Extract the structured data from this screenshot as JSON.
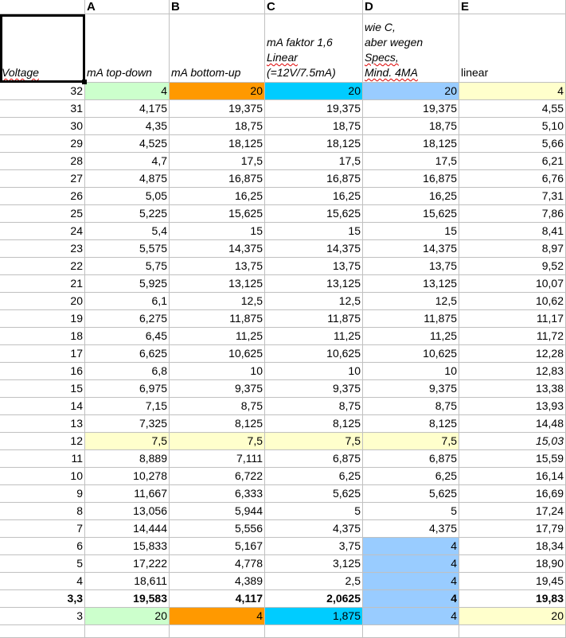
{
  "colors": {
    "green": "#ccffcc",
    "orange": "#ff9900",
    "cyan": "#00ccff",
    "blue": "#99ccff",
    "yellow": "#ffffcc"
  },
  "column_letters": [
    "",
    "A",
    "B",
    "C",
    "D",
    "E"
  ],
  "headers": [
    {
      "lines": [
        "Voltage"
      ]
    },
    {
      "lines": [
        "mA top-down"
      ]
    },
    {
      "lines": [
        "mA bottom-up"
      ]
    },
    {
      "lines": [
        "mA faktor 1,6",
        "Linear",
        "(=12V/7.5mA)"
      ]
    },
    {
      "lines": [
        "wie C,",
        "aber wegen",
        "Specs,",
        "Mind. 4MA"
      ]
    },
    {
      "lines": [
        "linear"
      ]
    }
  ],
  "rows": [
    {
      "v": [
        "32",
        "4",
        "20",
        "20",
        "20",
        "4"
      ],
      "fill": [
        null,
        "green",
        "orange",
        "cyan",
        "blue",
        "yellow"
      ]
    },
    {
      "v": [
        "31",
        "4,175",
        "19,375",
        "19,375",
        "19,375",
        "4,55"
      ]
    },
    {
      "v": [
        "30",
        "4,35",
        "18,75",
        "18,75",
        "18,75",
        "5,10"
      ]
    },
    {
      "v": [
        "29",
        "4,525",
        "18,125",
        "18,125",
        "18,125",
        "5,66"
      ]
    },
    {
      "v": [
        "28",
        "4,7",
        "17,5",
        "17,5",
        "17,5",
        "6,21"
      ]
    },
    {
      "v": [
        "27",
        "4,875",
        "16,875",
        "16,875",
        "16,875",
        "6,76"
      ]
    },
    {
      "v": [
        "26",
        "5,05",
        "16,25",
        "16,25",
        "16,25",
        "7,31"
      ]
    },
    {
      "v": [
        "25",
        "5,225",
        "15,625",
        "15,625",
        "15,625",
        "7,86"
      ]
    },
    {
      "v": [
        "24",
        "5,4",
        "15",
        "15",
        "15",
        "8,41"
      ]
    },
    {
      "v": [
        "23",
        "5,575",
        "14,375",
        "14,375",
        "14,375",
        "8,97"
      ]
    },
    {
      "v": [
        "22",
        "5,75",
        "13,75",
        "13,75",
        "13,75",
        "9,52"
      ]
    },
    {
      "v": [
        "21",
        "5,925",
        "13,125",
        "13,125",
        "13,125",
        "10,07"
      ]
    },
    {
      "v": [
        "20",
        "6,1",
        "12,5",
        "12,5",
        "12,5",
        "10,62"
      ]
    },
    {
      "v": [
        "19",
        "6,275",
        "11,875",
        "11,875",
        "11,875",
        "11,17"
      ]
    },
    {
      "v": [
        "18",
        "6,45",
        "11,25",
        "11,25",
        "11,25",
        "11,72"
      ]
    },
    {
      "v": [
        "17",
        "6,625",
        "10,625",
        "10,625",
        "10,625",
        "12,28"
      ]
    },
    {
      "v": [
        "16",
        "6,8",
        "10",
        "10",
        "10",
        "12,83"
      ]
    },
    {
      "v": [
        "15",
        "6,975",
        "9,375",
        "9,375",
        "9,375",
        "13,38"
      ]
    },
    {
      "v": [
        "14",
        "7,15",
        "8,75",
        "8,75",
        "8,75",
        "13,93"
      ]
    },
    {
      "v": [
        "13",
        "7,325",
        "8,125",
        "8,125",
        "8,125",
        "14,48"
      ]
    },
    {
      "v": [
        "12",
        "7,5",
        "7,5",
        "7,5",
        "7,5",
        "15,03"
      ],
      "fill": [
        null,
        "yellow",
        "yellow",
        "yellow",
        "yellow",
        null
      ],
      "italic_last": true
    },
    {
      "v": [
        "11",
        "8,889",
        "7,111",
        "6,875",
        "6,875",
        "15,59"
      ]
    },
    {
      "v": [
        "10",
        "10,278",
        "6,722",
        "6,25",
        "6,25",
        "16,14"
      ]
    },
    {
      "v": [
        "9",
        "11,667",
        "6,333",
        "5,625",
        "5,625",
        "16,69"
      ]
    },
    {
      "v": [
        "8",
        "13,056",
        "5,944",
        "5",
        "5",
        "17,24"
      ]
    },
    {
      "v": [
        "7",
        "14,444",
        "5,556",
        "4,375",
        "4,375",
        "17,79"
      ]
    },
    {
      "v": [
        "6",
        "15,833",
        "5,167",
        "3,75",
        "4",
        "18,34"
      ],
      "fill": [
        null,
        null,
        null,
        null,
        "blue",
        null
      ]
    },
    {
      "v": [
        "5",
        "17,222",
        "4,778",
        "3,125",
        "4",
        "18,90"
      ],
      "fill": [
        null,
        null,
        null,
        null,
        "blue",
        null
      ]
    },
    {
      "v": [
        "4",
        "18,611",
        "4,389",
        "2,5",
        "4",
        "19,45"
      ],
      "fill": [
        null,
        null,
        null,
        null,
        "blue",
        null
      ]
    },
    {
      "v": [
        "3,3",
        "19,583",
        "4,117",
        "2,0625",
        "4",
        "19,83"
      ],
      "fill": [
        null,
        null,
        null,
        null,
        "blue",
        null
      ],
      "bold": true
    },
    {
      "v": [
        "3",
        "20",
        "4",
        "1,875",
        "4",
        "20"
      ],
      "fill": [
        null,
        "green",
        "orange",
        "cyan",
        "blue",
        "yellow"
      ]
    }
  ]
}
